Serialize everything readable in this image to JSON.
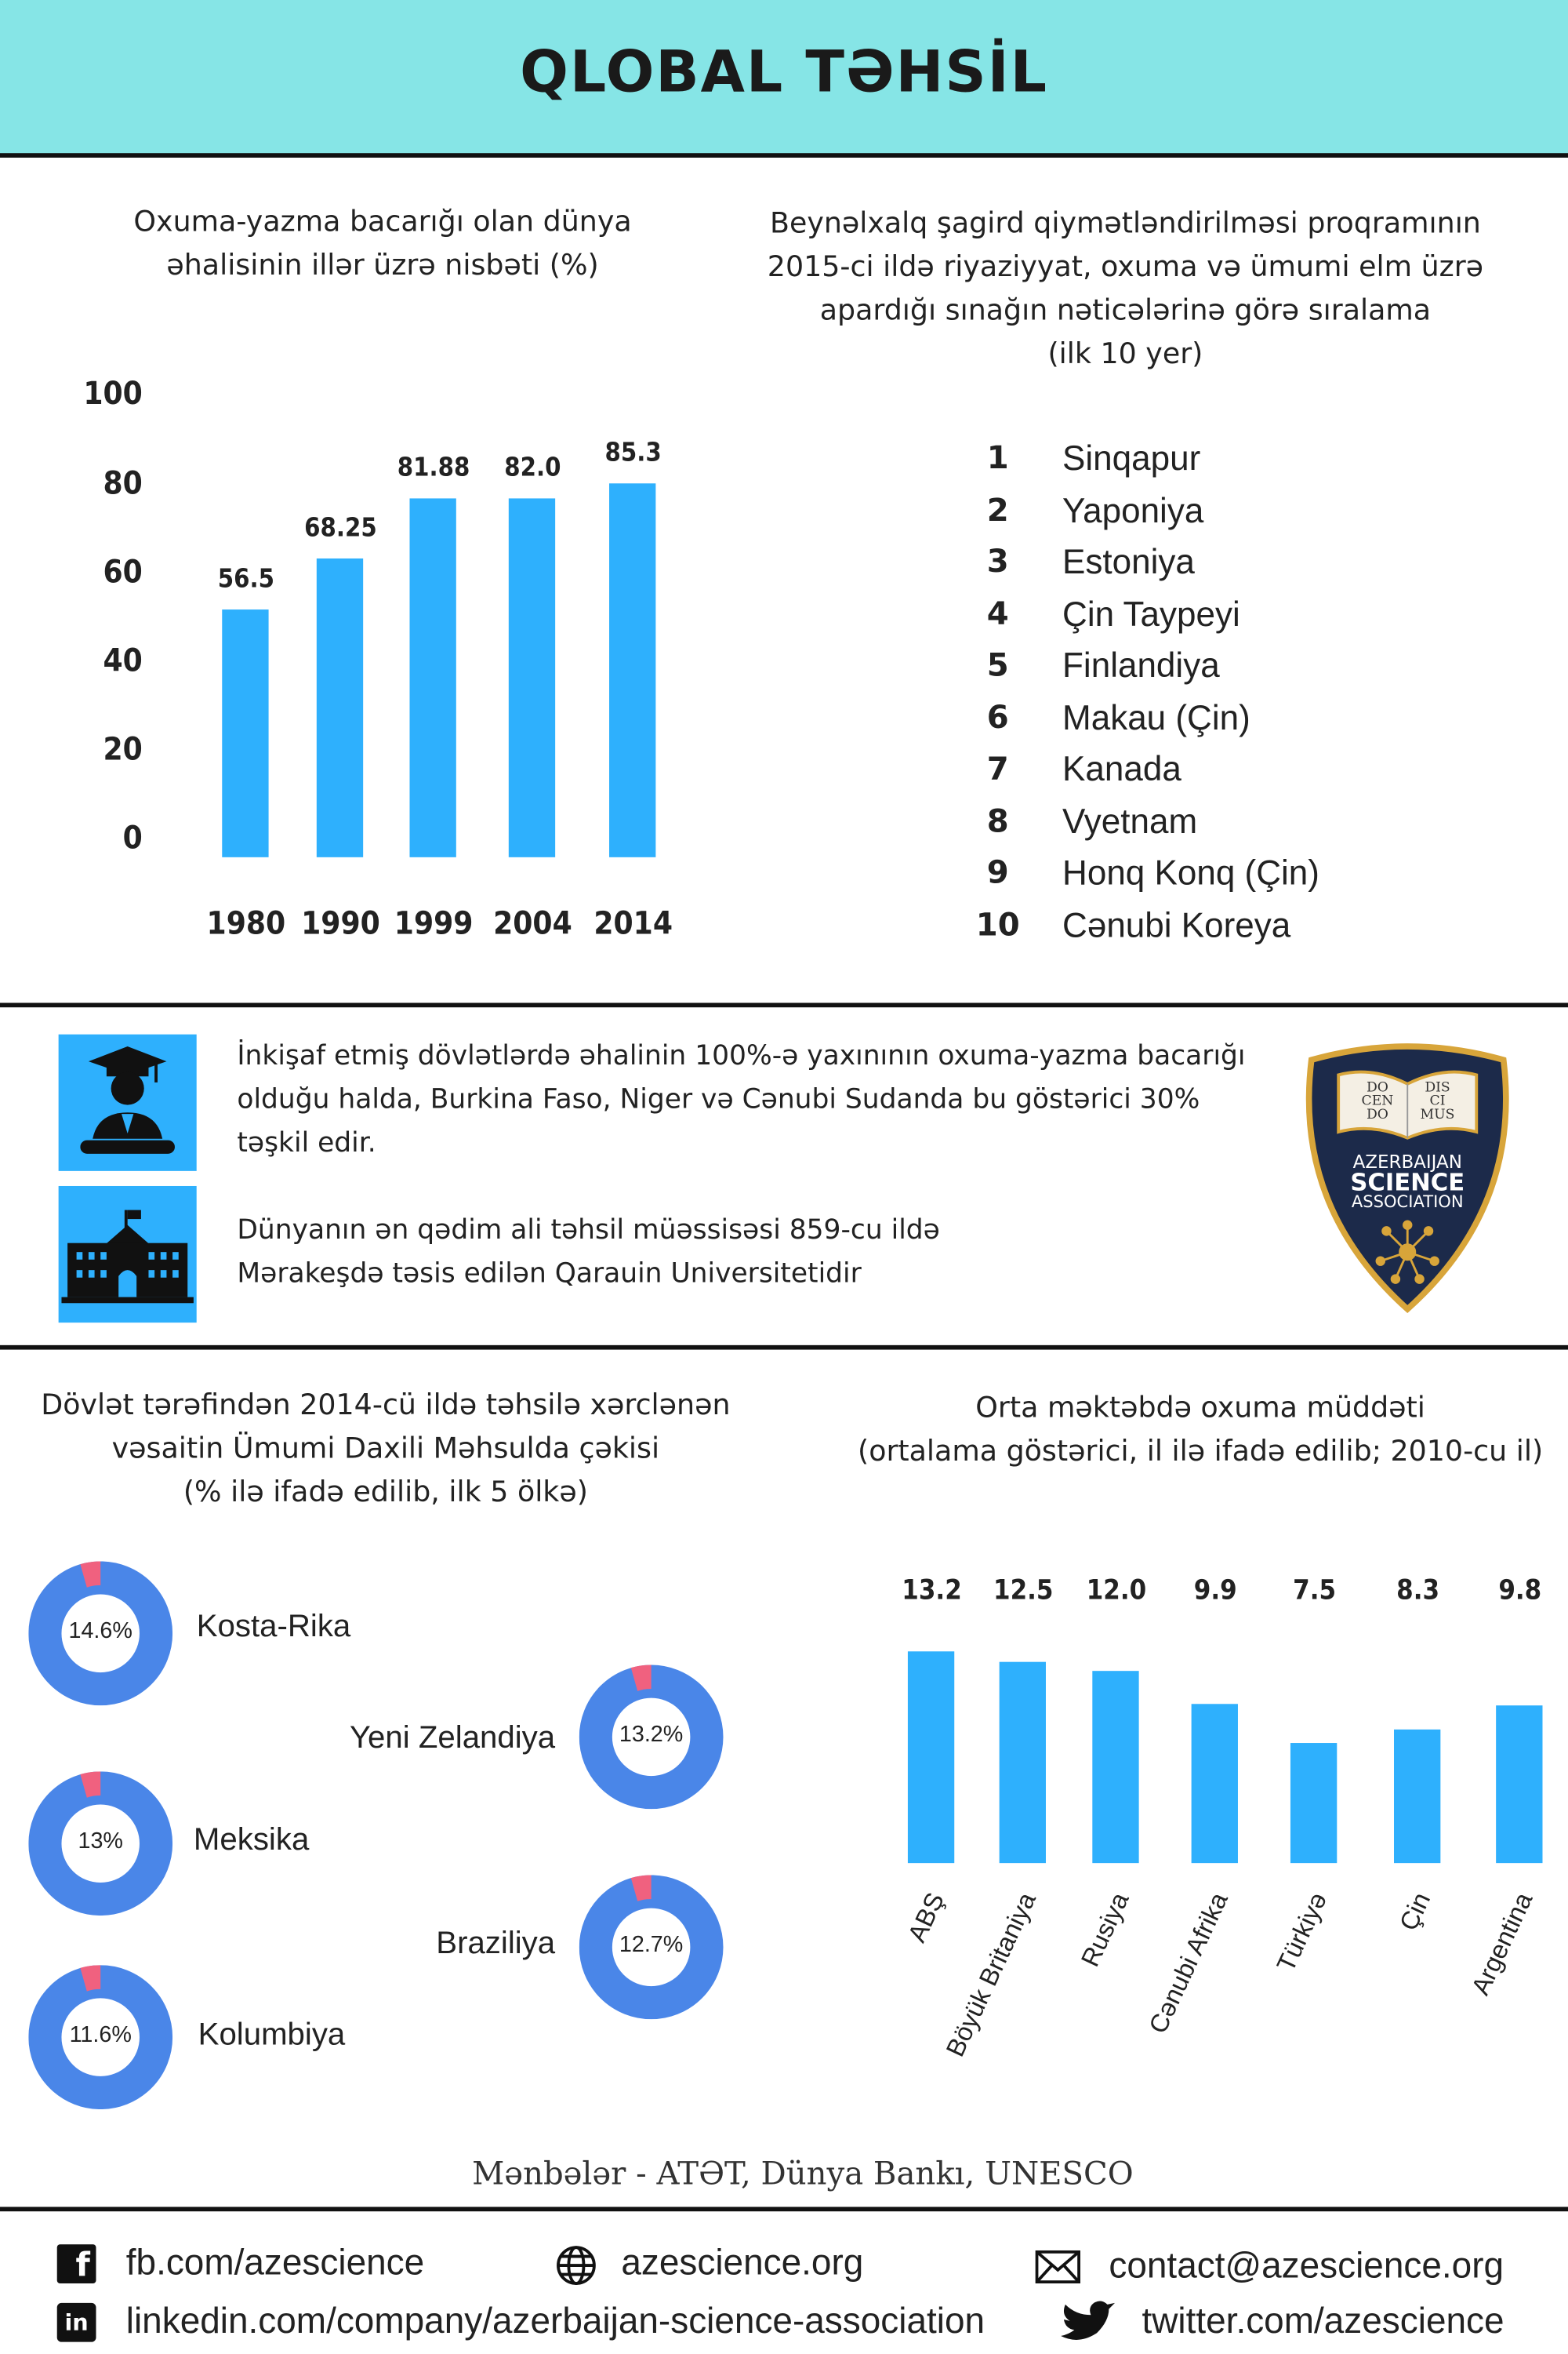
{
  "header": {
    "title": "QLOBAL TƏHSİL",
    "bg_color": "#86e5e6"
  },
  "chart_data": [
    {
      "type": "bar",
      "title": "Oxuma-yazma bacarığı olan dünya əhalisinin illər üzrə nisbəti (%)",
      "title_lines": [
        "Oxuma-yazma bacarığı olan dünya",
        "əhalisinin illər üzrə nisbəti (%)"
      ],
      "categories": [
        "1980",
        "1990",
        "1999",
        "2004",
        "2014"
      ],
      "values": [
        56.5,
        68.25,
        81.88,
        82.0,
        85.3
      ],
      "value_labels": [
        "56.5",
        "68.25",
        "81.88",
        "82.0",
        "85.3"
      ],
      "yticks": [
        "100",
        "80",
        "60",
        "40",
        "20",
        "0"
      ],
      "ylim": [
        0,
        100
      ],
      "color": "#2eb0fd",
      "grid": false
    },
    {
      "type": "bar",
      "title_lines": [
        "Orta məktəbdə oxuma müddəti",
        "(ortalama göstərici, il ilə ifadə edilib; 2010-cu il)"
      ],
      "categories": [
        "ABŞ",
        "Böyük Britaniya",
        "Rusiya",
        "Cənubi Afrika",
        "Türkiyə",
        "Çin",
        "Argentina"
      ],
      "values": [
        13.2,
        12.5,
        12.0,
        9.9,
        7.5,
        8.3,
        9.8
      ],
      "value_labels": [
        "13.2",
        "12.5",
        "12.0",
        "9.9",
        "7.5",
        "8.3",
        "9.8"
      ],
      "color": "#2eb0fd",
      "grid": false
    },
    {
      "type": "pie",
      "subtype": "donut",
      "title_lines": [
        "Dövlət tərəfindən 2014-cü ildə təhsilə xərclənən",
        "vəsaitin Ümumi Daxili Məhsulda çəkisi",
        "(% ilə ifadə edilib, ilk 5 ölkə)"
      ],
      "items": [
        {
          "country": "Kosta-Rika",
          "label": "14.6%",
          "value": 14.6
        },
        {
          "country": "Yeni Zelandiya",
          "label": "13.2%",
          "value": 13.2
        },
        {
          "country": "Meksika",
          "label": "13%",
          "value": 13
        },
        {
          "country": "Braziliya",
          "label": "12.7%",
          "value": 12.7
        },
        {
          "country": "Kolumbiya",
          "label": "11.6%",
          "value": 11.6
        }
      ],
      "colors": {
        "ring": "#4a86e8",
        "accent": "#f0617f"
      }
    }
  ],
  "ranking": {
    "title_lines": [
      "Beynəlxalq şagird qiymətləndirilməsi proqramının",
      "2015-ci ildə riyaziyyat, oxuma və ümumi elm üzrə",
      "apardığı sınağın nəticələrinə görə sıralama",
      "(ilk 10 yer)"
    ],
    "items": [
      {
        "n": "1",
        "name": "Sinqapur"
      },
      {
        "n": "2",
        "name": "Yaponiya"
      },
      {
        "n": "3",
        "name": "Estoniya"
      },
      {
        "n": "4",
        "name": "Çin Taypeyi"
      },
      {
        "n": "5",
        "name": "Finlandiya"
      },
      {
        "n": "6",
        "name": "Makau (Çin)"
      },
      {
        "n": "7",
        "name": "Kanada"
      },
      {
        "n": "8",
        "name": "Vyetnam"
      },
      {
        "n": "9",
        "name": "Honq Konq (Çin)"
      },
      {
        "n": "10",
        "name": "Cənubi Koreya"
      }
    ]
  },
  "facts": [
    {
      "icon": "graduate-icon",
      "lines": [
        "İnkişaf etmiş dövlətlərdə əhalinin 100%-ə yaxınının oxuma-yazma bacarığı",
        "olduğu halda, Burkina Faso, Niger və Cənubi Sudanda bu göstərici 30%",
        "təşkil edir."
      ]
    },
    {
      "icon": "university-building-icon",
      "lines": [
        "Dünyanın ən qədim ali təhsil müəssisəsi 859-cu ildə",
        "Mərakeşdə təsis edilən Qarauin Universitetidir"
      ]
    }
  ],
  "logo": {
    "book_left": [
      "DO",
      "CEN",
      "DO"
    ],
    "book_right": [
      "DIS",
      "CI",
      "MUS"
    ],
    "line1": "AZERBAIJAN",
    "line2": "SCIENCE",
    "line3": "ASSOCIATION",
    "colors": {
      "shield": "#1c2a4a",
      "gold": "#d8a53a"
    }
  },
  "sources": "Mənbələr - ATƏT, Dünya Bankı, UNESCO",
  "footer": {
    "facebook": "fb.com/azescience",
    "website": "azescience.org",
    "email": "contact@azescience.org",
    "linkedin": "linkedin.com/company/azerbaijan-science-association",
    "twitter": "twitter.com/azescience"
  }
}
